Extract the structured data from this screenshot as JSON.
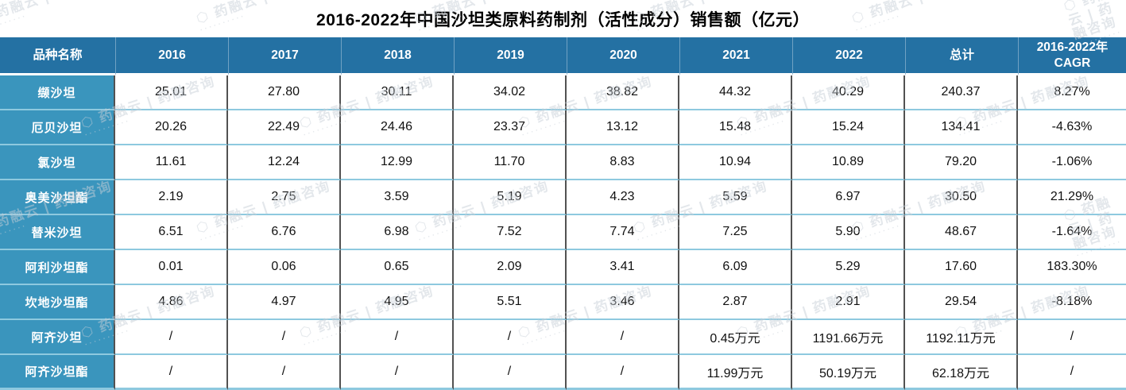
{
  "title": "2016-2022年中国沙坦类原料药制剂（活性成分）销售额（亿元）",
  "watermark": {
    "logo": "⬡",
    "text": "药融云 | 药融咨询",
    "dots": "··········"
  },
  "colors": {
    "header_bg": "#2471a3",
    "name_bg": "#3a95bd",
    "row_line": "#8ec9df",
    "col_line": "#525252"
  },
  "chart_data": {
    "type": "table",
    "title": "2016-2022年中国沙坦类原料药制剂（活性成分）销售额（亿元）",
    "columns": [
      "品种名称",
      "2016",
      "2017",
      "2018",
      "2019",
      "2020",
      "2021",
      "2022",
      "总计",
      "2016-2022年 CAGR"
    ],
    "rows": [
      {
        "name": "缬沙坦",
        "values": [
          "25.01",
          "27.80",
          "30.11",
          "34.02",
          "38.82",
          "44.32",
          "40.29",
          "240.37",
          "8.27%"
        ]
      },
      {
        "name": "厄贝沙坦",
        "values": [
          "20.26",
          "22.49",
          "24.46",
          "23.37",
          "13.12",
          "15.48",
          "15.24",
          "134.41",
          "-4.63%"
        ]
      },
      {
        "name": "氯沙坦",
        "values": [
          "11.61",
          "12.24",
          "12.99",
          "11.70",
          "8.83",
          "10.94",
          "10.89",
          "79.20",
          "-1.06%"
        ]
      },
      {
        "name": "奥美沙坦酯",
        "values": [
          "2.19",
          "2.75",
          "3.59",
          "5.19",
          "4.23",
          "5.59",
          "6.97",
          "30.50",
          "21.29%"
        ]
      },
      {
        "name": "替米沙坦",
        "values": [
          "6.51",
          "6.76",
          "6.98",
          "7.52",
          "7.74",
          "7.25",
          "5.90",
          "48.67",
          "-1.64%"
        ]
      },
      {
        "name": "阿利沙坦酯",
        "values": [
          "0.01",
          "0.06",
          "0.65",
          "2.09",
          "3.41",
          "6.09",
          "5.29",
          "17.60",
          "183.30%"
        ]
      },
      {
        "name": "坎地沙坦酯",
        "values": [
          "4.86",
          "4.97",
          "4.95",
          "5.51",
          "3.46",
          "2.87",
          "2.91",
          "29.54",
          "-8.18%"
        ]
      },
      {
        "name": "阿齐沙坦",
        "values": [
          "/",
          "/",
          "/",
          "/",
          "/",
          "0.45万元",
          "1191.66万元",
          "1192.11万元",
          "/"
        ]
      },
      {
        "name": "阿齐沙坦酯",
        "values": [
          "/",
          "/",
          "/",
          "/",
          "/",
          "11.99万元",
          "50.19万元",
          "62.18万元",
          "/"
        ]
      }
    ]
  }
}
